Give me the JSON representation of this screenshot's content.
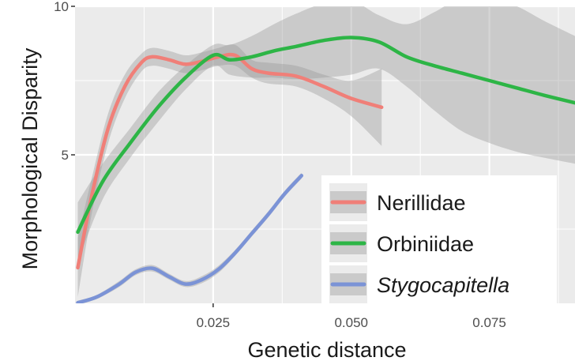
{
  "chart_data": {
    "type": "line",
    "title": "",
    "xlabel": "Genetic distance",
    "ylabel": "Morphological Disparity",
    "xlim": [
      0.0,
      0.0905
    ],
    "ylim": [
      0.0,
      10.0
    ],
    "x_ticks": [
      0.025,
      0.05,
      0.075
    ],
    "x_tick_labels": [
      "0.025",
      "0.050",
      "0.075"
    ],
    "y_ticks": [
      5,
      10
    ],
    "y_tick_labels": [
      "5",
      "10"
    ],
    "grid": true,
    "legend_position": "bottom-right",
    "series": [
      {
        "name": "Nerillidae",
        "color": "#f07f78",
        "italic": false,
        "x": [
          0.0005,
          0.003,
          0.006,
          0.009,
          0.012,
          0.014,
          0.017,
          0.02,
          0.023,
          0.026,
          0.029,
          0.032,
          0.035,
          0.04,
          0.045,
          0.05,
          0.0555
        ],
        "y": [
          1.2,
          3.6,
          5.9,
          7.3,
          8.1,
          8.3,
          8.2,
          8.05,
          8.15,
          8.3,
          8.35,
          7.9,
          7.75,
          7.65,
          7.3,
          6.9,
          6.6
        ],
        "ci_lower": [
          0.2,
          3.0,
          5.4,
          6.9,
          7.8,
          8.0,
          7.9,
          7.75,
          7.85,
          8.0,
          8.0,
          7.6,
          7.4,
          7.3,
          6.9,
          6.3,
          5.3
        ],
        "ci_upper": [
          2.2,
          4.2,
          6.4,
          7.7,
          8.4,
          8.6,
          8.5,
          8.35,
          8.45,
          8.6,
          8.7,
          8.2,
          8.1,
          8.0,
          7.7,
          7.5,
          7.9
        ]
      },
      {
        "name": "Orbiniidae",
        "color": "#2db546",
        "italic": false,
        "x": [
          0.0005,
          0.005,
          0.01,
          0.015,
          0.02,
          0.025,
          0.028,
          0.032,
          0.036,
          0.04,
          0.045,
          0.05,
          0.055,
          0.06,
          0.065,
          0.07,
          0.075,
          0.08,
          0.085,
          0.0905
        ],
        "y": [
          2.4,
          4.1,
          5.4,
          6.6,
          7.6,
          8.35,
          8.2,
          8.3,
          8.5,
          8.65,
          8.85,
          8.95,
          8.8,
          8.3,
          8.0,
          7.75,
          7.5,
          7.25,
          7.0,
          6.75
        ],
        "ci_lower": [
          1.4,
          3.5,
          4.9,
          6.1,
          7.2,
          8.0,
          7.7,
          7.6,
          7.6,
          7.55,
          7.6,
          7.7,
          7.9,
          7.3,
          6.5,
          5.8,
          5.4,
          5.1,
          4.9,
          4.7
        ],
        "ci_upper": [
          3.4,
          4.7,
          5.9,
          7.1,
          8.0,
          8.7,
          8.7,
          9.0,
          9.4,
          9.75,
          10.1,
          10.2,
          9.7,
          9.4,
          9.8,
          10.3,
          10.3,
          10.0,
          9.5,
          9.0
        ]
      },
      {
        "name": "Stygocapitella",
        "color": "#7b93d6",
        "italic": true,
        "x": [
          0.0005,
          0.004,
          0.008,
          0.011,
          0.014,
          0.017,
          0.02,
          0.023,
          0.026,
          0.029,
          0.032,
          0.035,
          0.038,
          0.041
        ],
        "y": [
          0.02,
          0.22,
          0.65,
          1.05,
          1.18,
          0.9,
          0.65,
          0.8,
          1.15,
          1.7,
          2.35,
          3.0,
          3.7,
          4.3
        ],
        "ci_lower": [
          -0.05,
          0.15,
          0.55,
          0.95,
          1.07,
          0.8,
          0.55,
          0.68,
          1.03,
          1.6,
          2.25,
          2.9,
          3.6,
          4.2
        ],
        "ci_upper": [
          0.09,
          0.29,
          0.75,
          1.15,
          1.29,
          1.0,
          0.75,
          0.92,
          1.27,
          1.8,
          2.45,
          3.1,
          3.8,
          4.4
        ]
      }
    ]
  },
  "colors": {
    "panel_background": "#ebebeb",
    "grid_line": "#ffffff",
    "ribbon": "#999999",
    "legend_background": "#ffffff",
    "legend_key_background": "#ebebeb"
  }
}
